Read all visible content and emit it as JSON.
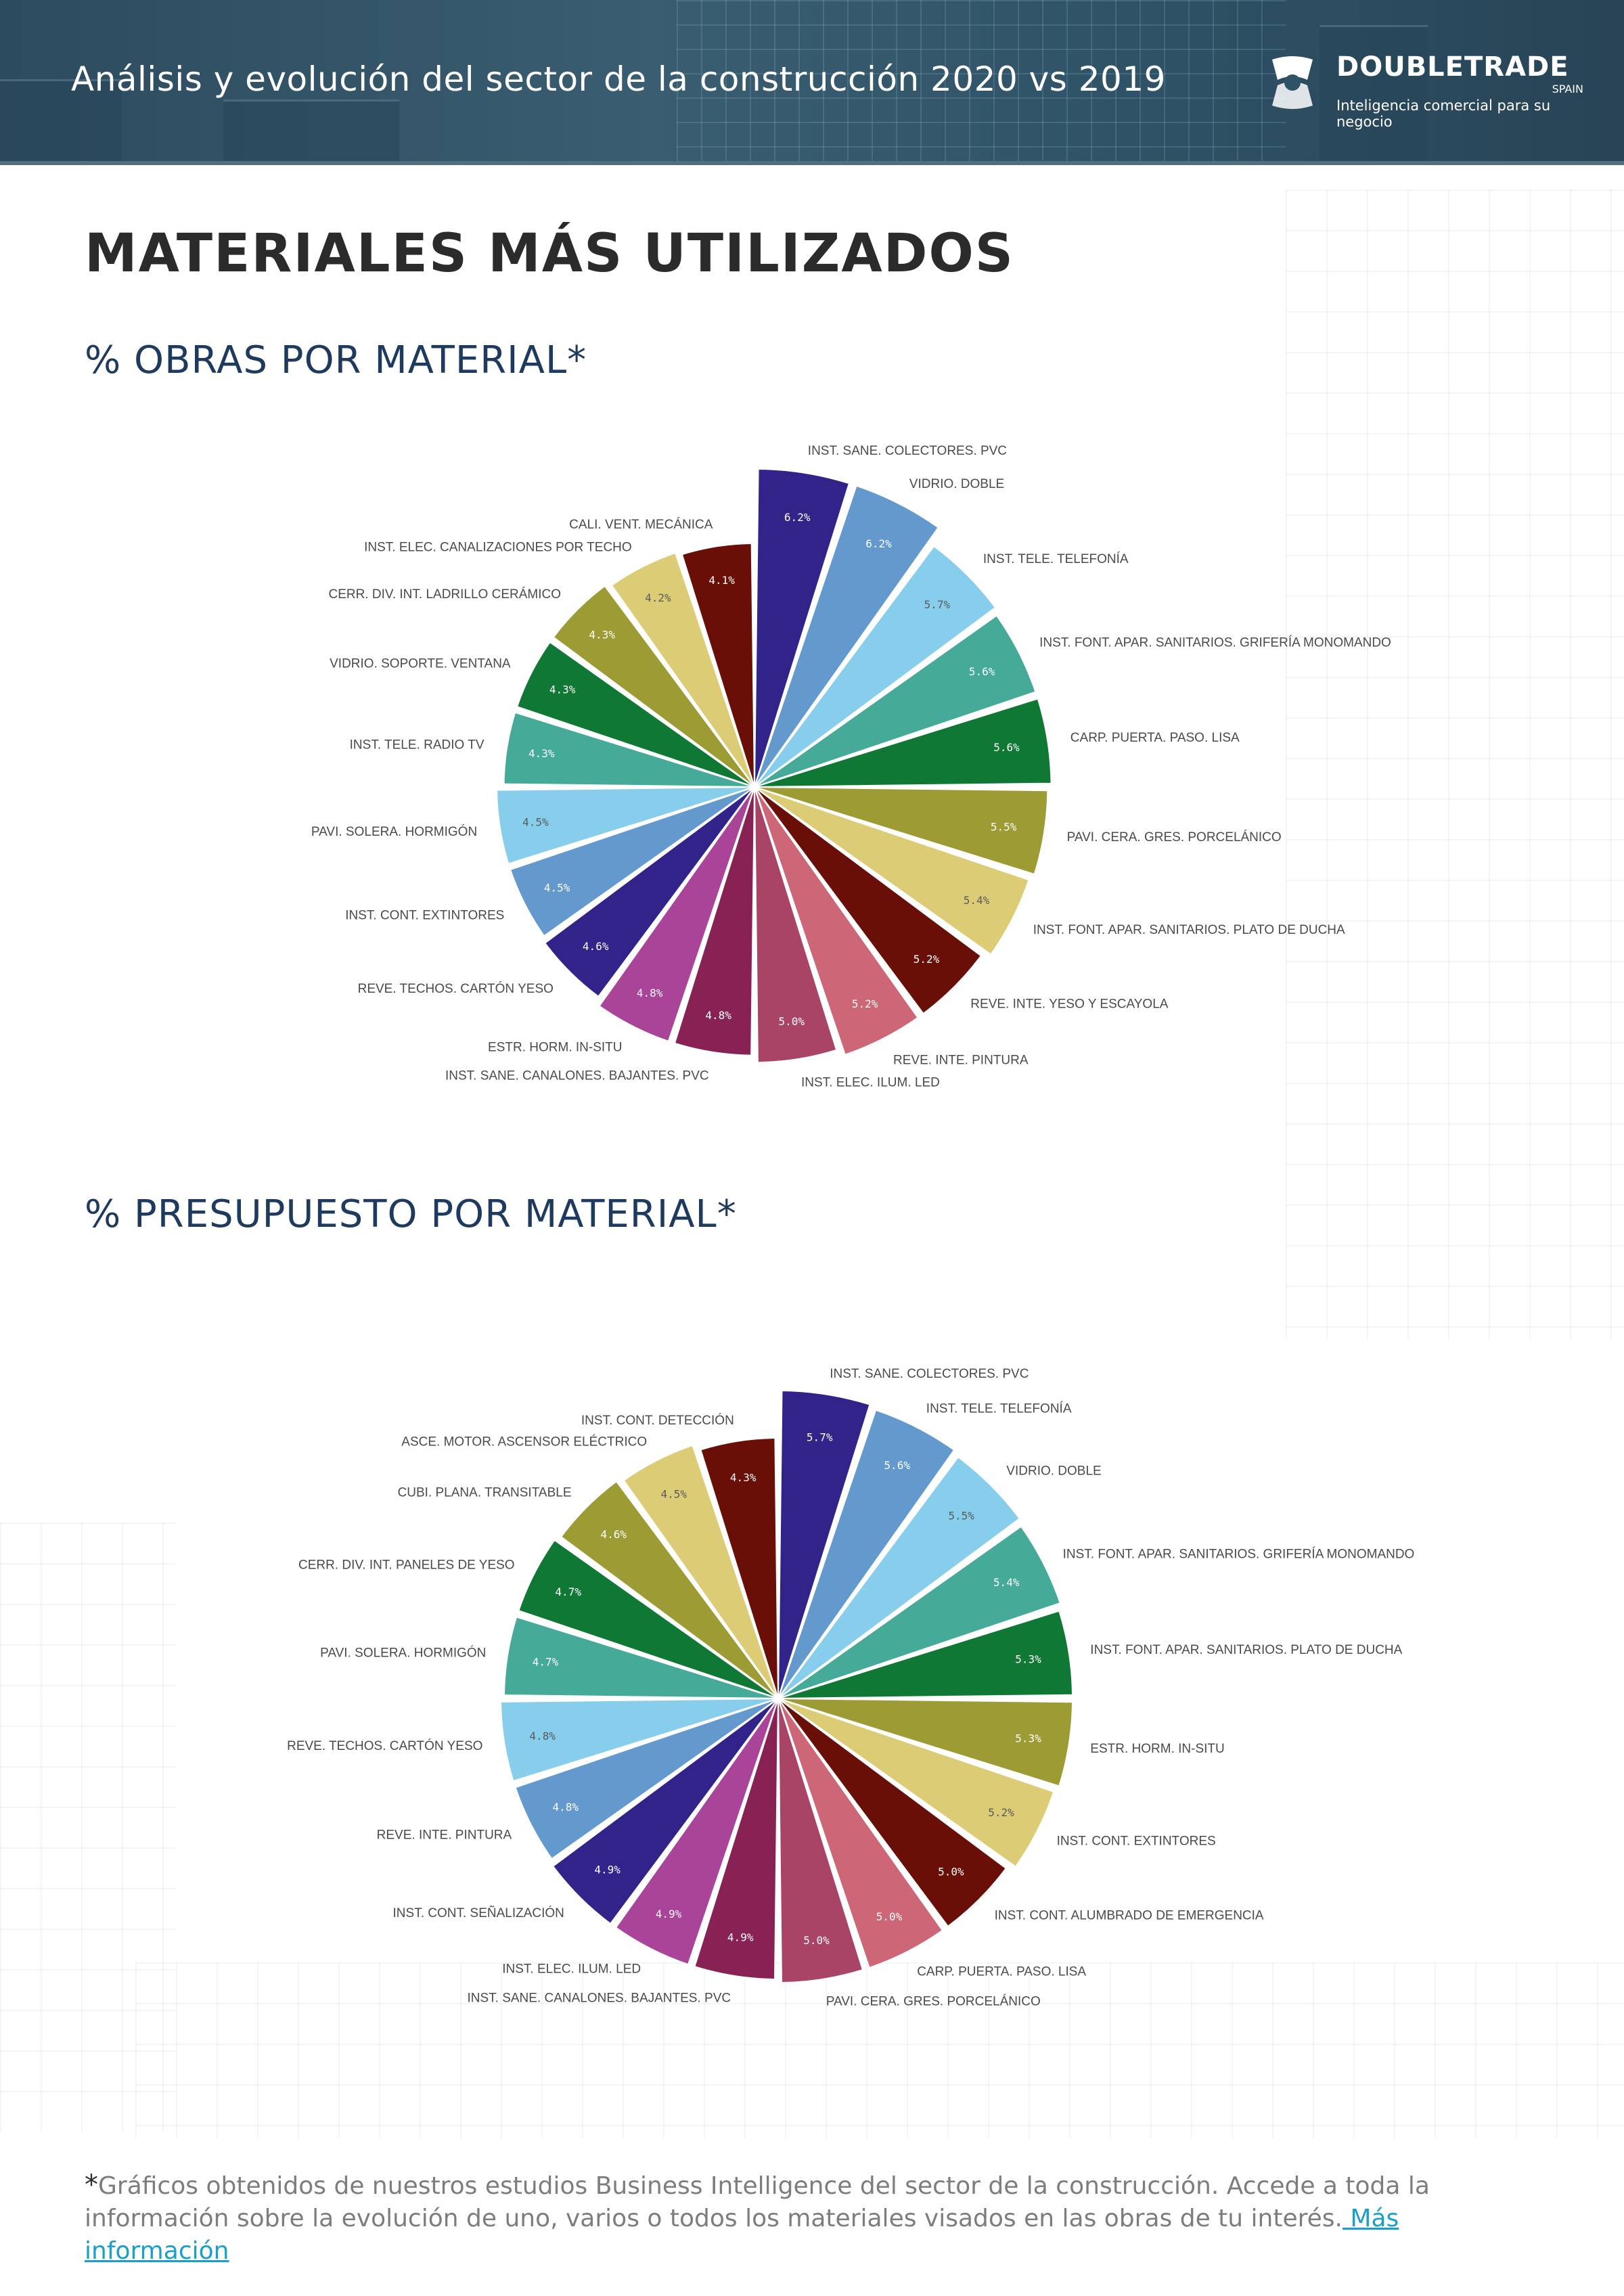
{
  "header": {
    "title": "Análisis y evolución del sector de la construcción 2020 vs 2019",
    "logo": {
      "icon": "doubletrade-logo-icon",
      "name": "DOUBLETRADE",
      "country": "SPAIN",
      "slogan": "Inteligencia comercial para  su negocio"
    }
  },
  "page": {
    "title": "MATERIALES MÁS UTILIZADOS"
  },
  "colors": [
    "#31238a",
    "#6399cd",
    "#87cdec",
    "#46aa98",
    "#107835",
    "#9c9b34",
    "#ddcc76",
    "#690f07",
    "#cd6677",
    "#aa4466",
    "#882255",
    "#aa4499"
  ],
  "chart_data": [
    {
      "type": "pie",
      "style": "rose",
      "title": "% OBRAS POR MATERIAL*",
      "slices": [
        {
          "label": "INST. SANE. COLECTORES. PVC",
          "value": 6.2,
          "display": "6.2%"
        },
        {
          "label": "VIDRIO. DOBLE",
          "value": 6.2,
          "display": "6.2%"
        },
        {
          "label": "INST. TELE. TELEFONÍA",
          "value": 5.7,
          "display": "5.7%"
        },
        {
          "label": "INST. FONT. APAR. SANITARIOS. GRIFERÍA MONOMANDO",
          "value": 5.6,
          "display": "5.6%"
        },
        {
          "label": "CARP. PUERTA. PASO. LISA",
          "value": 5.6,
          "display": "5.6%"
        },
        {
          "label": "PAVI. CERA. GRES. PORCELÁNICO",
          "value": 5.5,
          "display": "5.5%"
        },
        {
          "label": "INST. FONT. APAR. SANITARIOS. PLATO DE DUCHA",
          "value": 5.4,
          "display": "5.4%"
        },
        {
          "label": "REVE. INTE. YESO Y ESCAYOLA",
          "value": 5.2,
          "display": "5.2%"
        },
        {
          "label": "REVE. INTE. PINTURA",
          "value": 5.2,
          "display": "5.2%"
        },
        {
          "label": "INST. ELEC. ILUM. LED",
          "value": 5.0,
          "display": "5.0%"
        },
        {
          "label": "INST. SANE. CANALONES. BAJANTES. PVC",
          "value": 4.8,
          "display": "4.8%"
        },
        {
          "label": "ESTR. HORM. IN-SITU",
          "value": 4.8,
          "display": "4.8%"
        },
        {
          "label": "REVE. TECHOS. CARTÓN YESO",
          "value": 4.6,
          "display": "4.6%"
        },
        {
          "label": "INST. CONT. EXTINTORES",
          "value": 4.5,
          "display": "4.5%"
        },
        {
          "label": "PAVI. SOLERA. HORMIGÓN",
          "value": 4.5,
          "display": "4.5%"
        },
        {
          "label": "INST. TELE. RADIO TV",
          "value": 4.3,
          "display": "4.3%"
        },
        {
          "label": "VIDRIO. SOPORTE. VENTANA",
          "value": 4.3,
          "display": "4.3%"
        },
        {
          "label": "CERR. DIV. INT. LADRILLO CERÁMICO",
          "value": 4.3,
          "display": "4.3%"
        },
        {
          "label": "INST. ELEC. CANALIZACIONES POR TECHO",
          "value": 4.2,
          "display": "4.2%"
        },
        {
          "label": "CALI. VENT. MECÁNICA",
          "value": 4.1,
          "display": "4.1%"
        }
      ]
    },
    {
      "type": "pie",
      "style": "rose",
      "title": "% PRESUPUESTO POR MATERIAL*",
      "slices": [
        {
          "label": "INST. SANE. COLECTORES. PVC",
          "value": 5.7,
          "display": "5.7%"
        },
        {
          "label": "INST. TELE. TELEFONÍA",
          "value": 5.6,
          "display": "5.6%"
        },
        {
          "label": "VIDRIO. DOBLE",
          "value": 5.5,
          "display": "5.5%"
        },
        {
          "label": "INST. FONT. APAR. SANITARIOS. GRIFERÍA MONOMANDO",
          "value": 5.4,
          "display": "5.4%"
        },
        {
          "label": "INST. FONT. APAR. SANITARIOS. PLATO DE DUCHA",
          "value": 5.3,
          "display": "5.3%"
        },
        {
          "label": "ESTR. HORM. IN-SITU",
          "value": 5.3,
          "display": "5.3%"
        },
        {
          "label": "INST. CONT. EXTINTORES",
          "value": 5.2,
          "display": "5.2%"
        },
        {
          "label": "INST. CONT. ALUMBRADO DE EMERGENCIA",
          "value": 5.0,
          "display": "5.0%"
        },
        {
          "label": "CARP. PUERTA. PASO. LISA",
          "value": 5.0,
          "display": "5.0%"
        },
        {
          "label": "PAVI. CERA. GRES. PORCELÁNICO",
          "value": 5.0,
          "display": "5.0%"
        },
        {
          "label": "INST. SANE. CANALONES. BAJANTES. PVC",
          "value": 4.9,
          "display": "4.9%"
        },
        {
          "label": "INST. ELEC. ILUM. LED",
          "value": 4.9,
          "display": "4.9%"
        },
        {
          "label": "INST. CONT. SEÑALIZACIÓN",
          "value": 4.9,
          "display": "4.9%"
        },
        {
          "label": "REVE. INTE. PINTURA",
          "value": 4.8,
          "display": "4.8%"
        },
        {
          "label": "REVE. TECHOS. CARTÓN YESO",
          "value": 4.8,
          "display": "4.8%"
        },
        {
          "label": "PAVI. SOLERA. HORMIGÓN",
          "value": 4.7,
          "display": "4.7%"
        },
        {
          "label": "CERR. DIV. INT. PANELES DE YESO",
          "value": 4.7,
          "display": "4.7%"
        },
        {
          "label": "CUBI. PLANA. TRANSITABLE",
          "value": 4.6,
          "display": "4.6%"
        },
        {
          "label": "ASCE. MOTOR. ASCENSOR ELÉCTRICO",
          "value": 4.5,
          "display": "4.5%"
        },
        {
          "label": "INST. CONT. DETECCIÓN",
          "value": 4.3,
          "display": "4.3%"
        }
      ]
    }
  ],
  "footnote": {
    "star": "*",
    "text": "Gráficos obtenidos de nuestros estudios Business Intelligence del sector de la construcción. Accede a toda la información sobre la evolución de uno, varios o todos los materiales visados en las obras de tu interés.",
    "link": " Más información"
  }
}
